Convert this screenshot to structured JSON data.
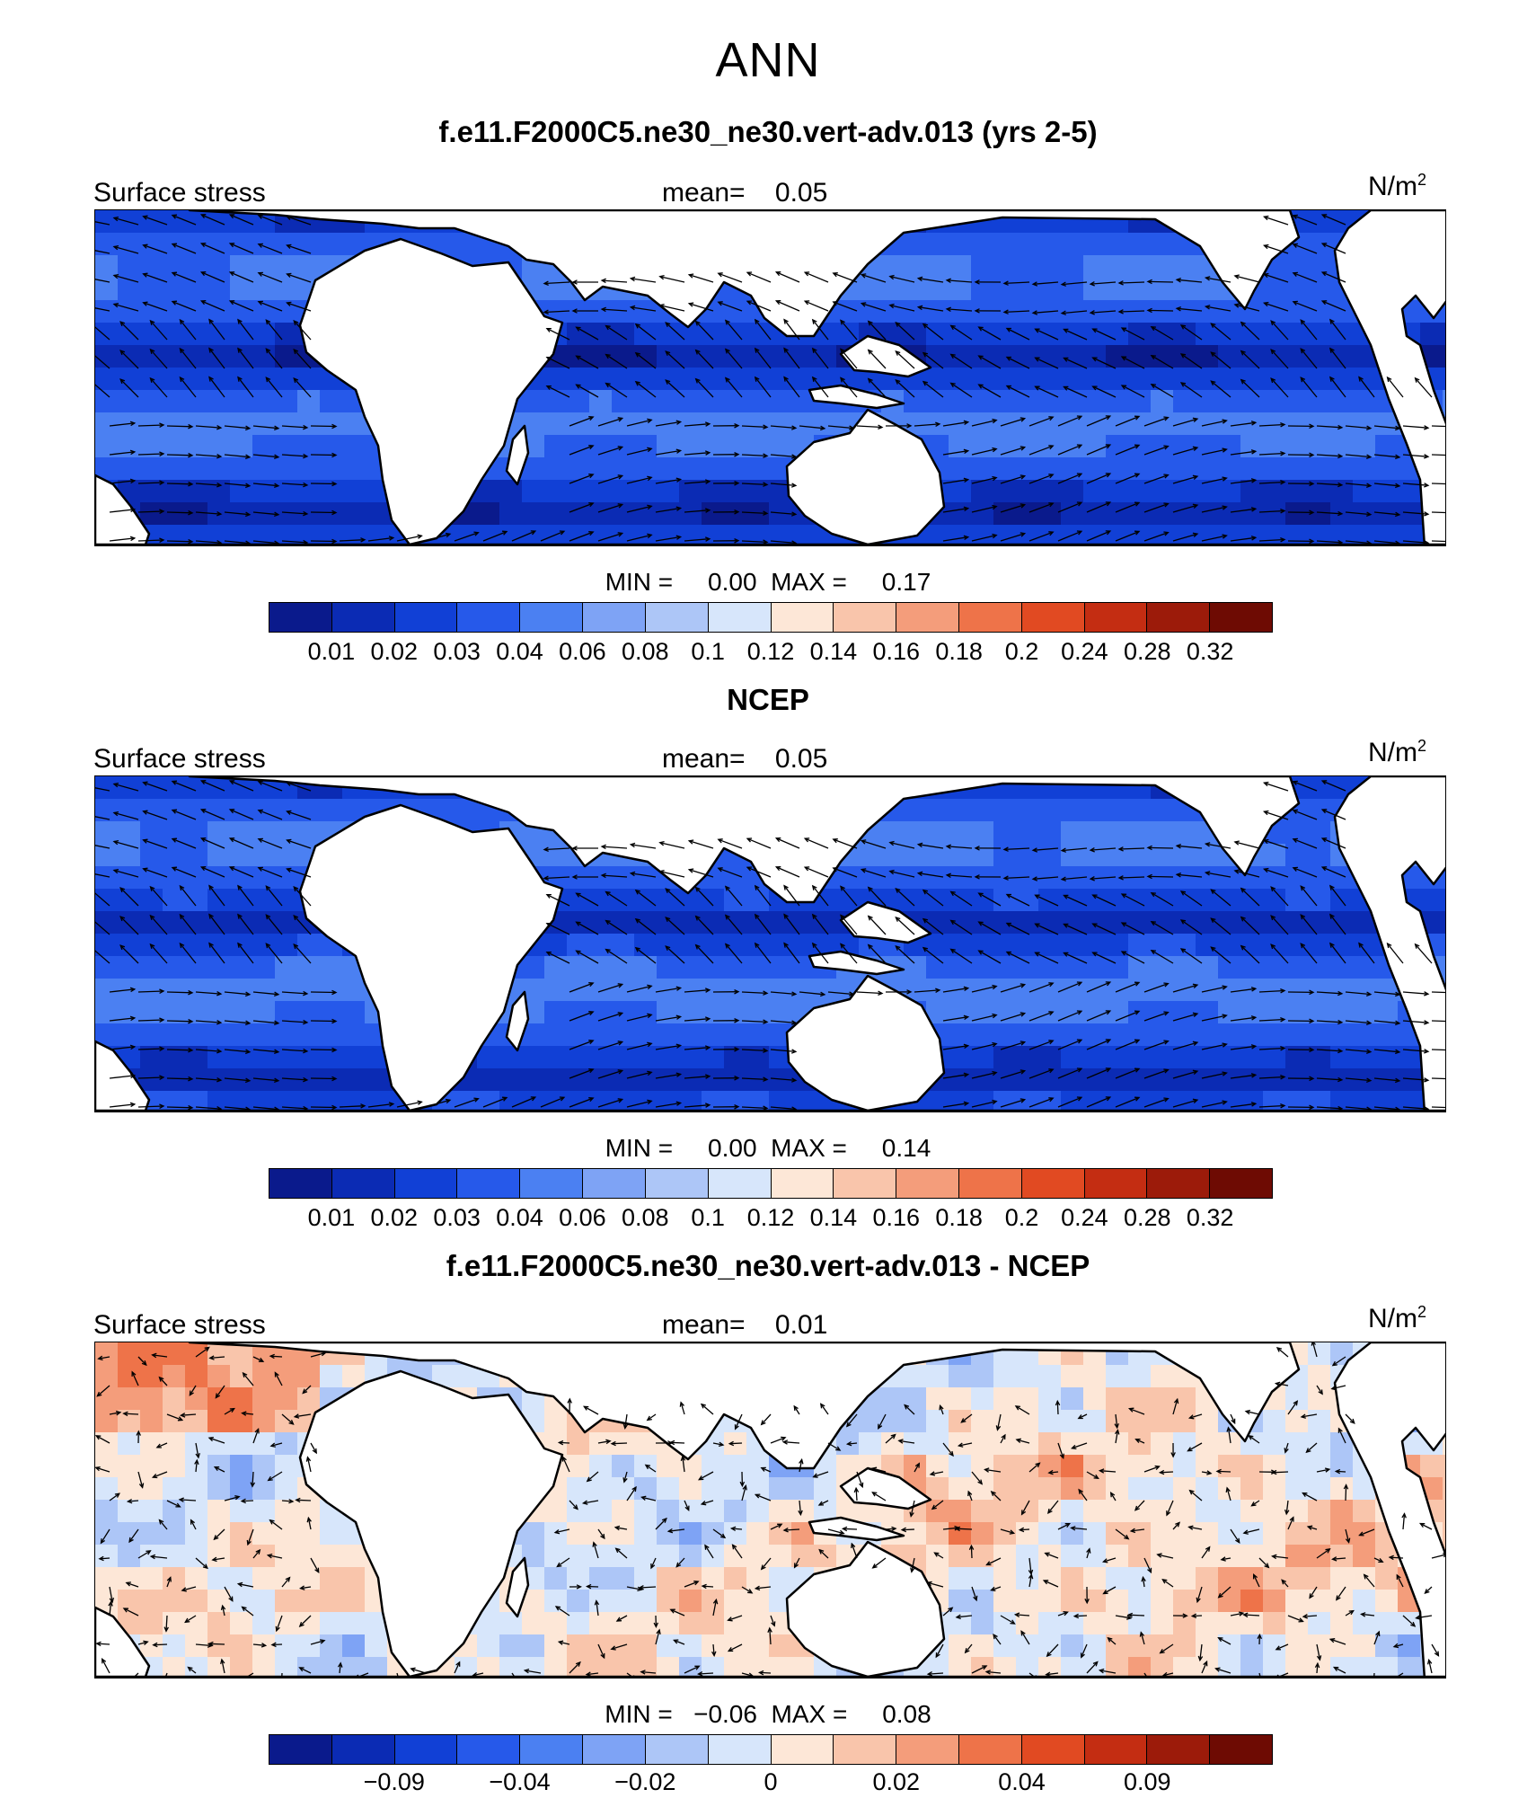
{
  "title": "ANN",
  "panels": [
    {
      "title": "f.e11.F2000C5.ne30_ne30.vert-adv.013 (yrs 2-5)",
      "field_label": "Surface stress",
      "mean_text": "mean=    0.05",
      "units": "N/m",
      "units_sup": "2",
      "minmax_text": "MIN =     0.00  MAX =     0.17",
      "colorbar_ticks": [
        "0.01",
        "0.02",
        "0.03",
        "0.04",
        "0.06",
        "0.08",
        "0.1",
        "0.12",
        "0.14",
        "0.16",
        "0.18",
        "0.2",
        "0.24",
        "0.28",
        "0.32"
      ],
      "tick_mode": "all"
    },
    {
      "title": "NCEP",
      "field_label": "Surface stress",
      "mean_text": "mean=    0.05",
      "units": "N/m",
      "units_sup": "2",
      "minmax_text": "MIN =     0.00  MAX =     0.14",
      "colorbar_ticks": [
        "0.01",
        "0.02",
        "0.03",
        "0.04",
        "0.06",
        "0.08",
        "0.1",
        "0.12",
        "0.14",
        "0.16",
        "0.18",
        "0.2",
        "0.24",
        "0.28",
        "0.32"
      ],
      "tick_mode": "all"
    },
    {
      "title": "f.e11.F2000C5.ne30_ne30.vert-adv.013 - NCEP",
      "field_label": "Surface stress",
      "mean_text": "mean=    0.01",
      "units": "N/m",
      "units_sup": "2",
      "minmax_text": "MIN =   −0.06  MAX =     0.08",
      "colorbar_ticks": [
        "−0.09",
        "−0.04",
        "−0.02",
        "0",
        "0.02",
        "0.04",
        "0.09"
      ],
      "tick_mode": "diff"
    }
  ],
  "colorbar_colors": [
    "#0a1a8c",
    "#0b2bb4",
    "#1140d6",
    "#2659ea",
    "#4b80f2",
    "#7ea3f5",
    "#adc6f7",
    "#d7e6fb",
    "#fde7d7",
    "#f9c5ab",
    "#f49d7b",
    "#ee7349",
    "#e14a22",
    "#c42d12",
    "#9c1b0a",
    "#6e0b03"
  ],
  "icons": {
    "arrow": "wind-stress-vector"
  }
}
